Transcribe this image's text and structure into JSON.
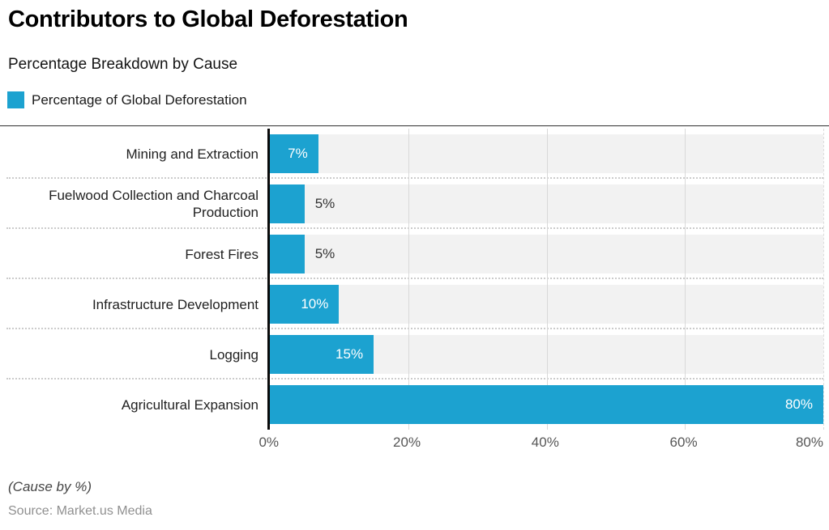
{
  "header": {
    "title": "Contributors to Global Deforestation",
    "subtitle": "Percentage Breakdown by Cause"
  },
  "legend": {
    "label": "Percentage of Global Deforestation",
    "swatch_color": "#1ca2d0"
  },
  "chart_data": {
    "type": "bar",
    "orientation": "horizontal",
    "title": "Contributors to Global Deforestation",
    "subtitle": "Percentage Breakdown by Cause",
    "series_name": "Percentage of Global Deforestation",
    "categories": [
      "Mining and Extraction",
      "Fuelwood Collection and Charcoal Production",
      "Forest Fires",
      "Infrastructure Development",
      "Logging",
      "Agricultural Expansion"
    ],
    "values": [
      7,
      5,
      5,
      10,
      15,
      80
    ],
    "value_labels": [
      "7%",
      "5%",
      "5%",
      "10%",
      "15%",
      "80%"
    ],
    "x_ticks": [
      "0%",
      "20%",
      "40%",
      "60%",
      "80%"
    ],
    "xlim": [
      0,
      80
    ],
    "grid": true,
    "bar_color": "#1ca2d0",
    "track_color": "#f2f2f2"
  },
  "footer": {
    "note": "(Cause by %)",
    "source": "Source: Market.us Media"
  }
}
